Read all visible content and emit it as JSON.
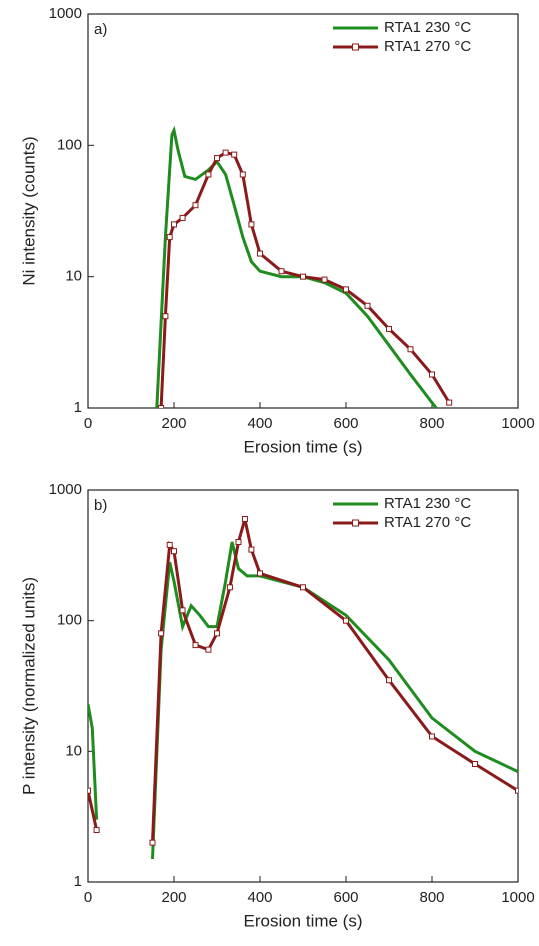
{
  "chart_data": [
    {
      "type": "line",
      "panel_label": "a)",
      "xlabel": "Erosion time (s)",
      "ylabel": "Ni intensity (counts)",
      "log_y": true,
      "xlim": [
        0,
        1000
      ],
      "xticks": [
        0,
        200,
        400,
        600,
        800,
        1000
      ],
      "ylim": [
        1,
        1000
      ],
      "yticks": [
        1,
        10,
        100,
        1000
      ],
      "legend": "upper right",
      "series": [
        {
          "name": "RTA1 230 °C",
          "color": "#1e8c1e",
          "marker": false,
          "x": [
            160,
            180,
            195,
            200,
            210,
            225,
            250,
            280,
            300,
            320,
            340,
            360,
            380,
            400,
            450,
            500,
            550,
            600,
            650,
            700,
            750,
            800,
            810
          ],
          "values": [
            1,
            20,
            120,
            130,
            90,
            58,
            55,
            65,
            75,
            60,
            35,
            20,
            13,
            11,
            10,
            10,
            9,
            7.5,
            5,
            3,
            1.8,
            1.1,
            1
          ]
        },
        {
          "name": "RTA1 270 °C",
          "color": "#8b1a1a",
          "marker": true,
          "x": [
            170,
            180,
            190,
            200,
            220,
            250,
            280,
            300,
            320,
            340,
            360,
            380,
            400,
            450,
            500,
            550,
            600,
            650,
            700,
            750,
            800,
            840
          ],
          "values": [
            1,
            5,
            20,
            25,
            28,
            35,
            60,
            80,
            88,
            85,
            60,
            25,
            15,
            11,
            10,
            9.5,
            8,
            6,
            4,
            2.8,
            1.8,
            1.1
          ]
        }
      ]
    },
    {
      "type": "line",
      "panel_label": "b)",
      "xlabel": "Erosion time (s)",
      "ylabel": "P intensity (normalized units)",
      "log_y": true,
      "xlim": [
        0,
        1000
      ],
      "xticks": [
        0,
        200,
        400,
        600,
        800,
        1000
      ],
      "ylim": [
        1,
        1000
      ],
      "yticks": [
        1,
        10,
        100,
        1000
      ],
      "legend": "upper right",
      "series": [
        {
          "name": "RTA1 230 °C",
          "color": "#1e8c1e",
          "marker": false,
          "x": [
            0,
            10,
            20,
            30,
            150,
            170,
            190,
            200,
            220,
            240,
            260,
            280,
            300,
            320,
            335,
            350,
            370,
            400,
            500,
            600,
            700,
            800,
            900,
            1000
          ],
          "values": [
            23,
            15,
            3,
            null,
            1.5,
            60,
            280,
            200,
            90,
            130,
            110,
            90,
            90,
            200,
            400,
            250,
            220,
            220,
            180,
            110,
            50,
            18,
            10,
            7
          ]
        },
        {
          "name": "RTA1 270 °C",
          "color": "#8b1a1a",
          "marker": true,
          "x": [
            0,
            20,
            40,
            150,
            170,
            190,
            200,
            220,
            250,
            280,
            300,
            330,
            350,
            365,
            380,
            400,
            500,
            600,
            700,
            800,
            900,
            1000
          ],
          "values": [
            5,
            2.5,
            null,
            2,
            80,
            380,
            340,
            120,
            65,
            60,
            80,
            180,
            400,
            600,
            350,
            230,
            180,
            100,
            35,
            13,
            8,
            5
          ]
        }
      ]
    }
  ]
}
